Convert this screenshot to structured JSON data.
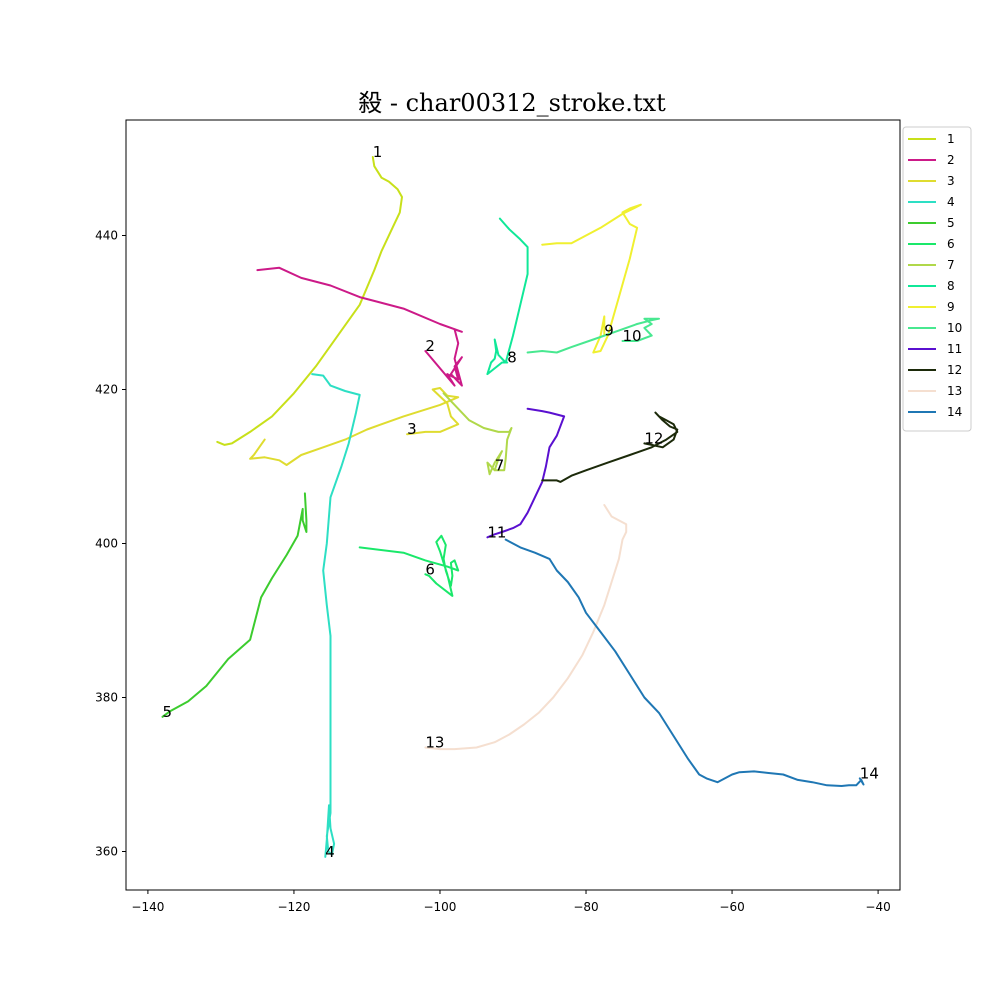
{
  "chart_data": {
    "type": "line",
    "title": "殺 - char00312_stroke.txt",
    "xlabel": "",
    "ylabel": "",
    "xlim": [
      -143,
      -37
    ],
    "ylim": [
      355,
      455
    ],
    "xticks": [
      -140,
      -120,
      -100,
      -80,
      -60,
      -40
    ],
    "yticks": [
      360,
      380,
      400,
      420,
      440
    ],
    "grid": false,
    "legend": "outside-right",
    "series": [
      {
        "name": "1",
        "color": "#c8e01a",
        "points": [
          [
            -130.5,
            413.2
          ],
          [
            -129.5,
            412.8
          ],
          [
            -128.5,
            413.0
          ],
          [
            -126,
            414.5
          ],
          [
            -123,
            416.5
          ],
          [
            -120,
            419.5
          ],
          [
            -117,
            423
          ],
          [
            -114,
            427
          ],
          [
            -111,
            431
          ],
          [
            -109,
            435.5
          ],
          [
            -108,
            438
          ],
          [
            -106.5,
            441
          ],
          [
            -105.5,
            443
          ],
          [
            -105.2,
            445
          ],
          [
            -105.8,
            446
          ],
          [
            -107,
            447
          ],
          [
            -108,
            447.5
          ],
          [
            -109,
            449
          ],
          [
            -109.2,
            450.2
          ]
        ]
      },
      {
        "name": "2",
        "color": "#cc1a88",
        "points": [
          [
            -125,
            435.5
          ],
          [
            -122,
            435.8
          ],
          [
            -119,
            434.5
          ],
          [
            -115,
            433.5
          ],
          [
            -111,
            432
          ],
          [
            -105,
            430.5
          ],
          [
            -100,
            428.5
          ],
          [
            -97,
            427.5
          ],
          [
            -98,
            427.8
          ],
          [
            -97.5,
            426
          ],
          [
            -98,
            424
          ],
          [
            -97,
            420.5
          ],
          [
            -98.5,
            422
          ],
          [
            -97,
            424.2
          ],
          [
            -98,
            423
          ],
          [
            -97.5,
            421.3
          ],
          [
            -99,
            422
          ],
          [
            -98,
            420.5
          ],
          [
            -102,
            425
          ]
        ]
      },
      {
        "name": "3",
        "color": "#dfdc30",
        "points": [
          [
            -124,
            413.5
          ],
          [
            -125.5,
            411.5
          ],
          [
            -126,
            411
          ],
          [
            -124,
            411.2
          ],
          [
            -122,
            410.8
          ],
          [
            -121,
            410.2
          ],
          [
            -119,
            411.5
          ],
          [
            -116,
            412.5
          ],
          [
            -113,
            413.5
          ],
          [
            -110,
            414.8
          ],
          [
            -105,
            416.5
          ],
          [
            -100,
            418
          ],
          [
            -97.5,
            419
          ],
          [
            -99,
            419.2
          ],
          [
            -100,
            420.2
          ],
          [
            -101,
            420.0
          ],
          [
            -99,
            418.2
          ],
          [
            -98.5,
            416.5
          ],
          [
            -97.5,
            415.5
          ],
          [
            -100,
            414.5
          ],
          [
            -102,
            414.5
          ],
          [
            -104.5,
            414.2
          ]
        ]
      },
      {
        "name": "4",
        "color": "#2ddfc4",
        "points": [
          [
            -117.5,
            422
          ],
          [
            -116,
            421.8
          ],
          [
            -115,
            420.5
          ],
          [
            -113,
            419.8
          ],
          [
            -111,
            419.3
          ],
          [
            -111.5,
            417
          ],
          [
            -112.5,
            413
          ],
          [
            -113.5,
            410
          ],
          [
            -115,
            406
          ],
          [
            -115.5,
            400
          ],
          [
            -116,
            396.5
          ],
          [
            -115.5,
            392
          ],
          [
            -115,
            388
          ],
          [
            -115,
            384
          ],
          [
            -115,
            380
          ],
          [
            -115,
            372
          ],
          [
            -115,
            365
          ],
          [
            -115.5,
            362
          ],
          [
            -115.3,
            360
          ],
          [
            -114.8,
            359.6
          ],
          [
            -114.5,
            361
          ],
          [
            -115,
            363
          ],
          [
            -115.2,
            366
          ],
          [
            -115.5,
            361.5
          ],
          [
            -115.7,
            359.3
          ]
        ]
      },
      {
        "name": "5",
        "color": "#3ccc2e",
        "points": [
          [
            -118.5,
            406.5
          ],
          [
            -118.3,
            403
          ],
          [
            -118.3,
            401.5
          ],
          [
            -118.8,
            403
          ],
          [
            -118.8,
            404.5
          ],
          [
            -119.5,
            401
          ],
          [
            -121,
            398.5
          ],
          [
            -123,
            395.5
          ],
          [
            -124.5,
            393
          ],
          [
            -126,
            387.5
          ],
          [
            -129,
            385
          ],
          [
            -132,
            381.5
          ],
          [
            -134.5,
            379.5
          ],
          [
            -137,
            378.2
          ],
          [
            -138,
            377.5
          ]
        ]
      },
      {
        "name": "6",
        "color": "#1ae86a",
        "points": [
          [
            -111,
            399.5
          ],
          [
            -105,
            398.8
          ],
          [
            -102,
            397.8
          ],
          [
            -99,
            397
          ],
          [
            -97.5,
            396.5
          ],
          [
            -98,
            397.8
          ],
          [
            -98.5,
            397.5
          ],
          [
            -98.3,
            395.8
          ],
          [
            -98.5,
            394.5
          ],
          [
            -99.2,
            396.5
          ],
          [
            -99.5,
            398
          ],
          [
            -99.2,
            399.8
          ],
          [
            -99.8,
            401
          ],
          [
            -100.5,
            400.2
          ],
          [
            -100,
            399
          ],
          [
            -99.5,
            397.5
          ],
          [
            -99,
            396
          ],
          [
            -98.3,
            393.2
          ],
          [
            -100.5,
            394.8
          ],
          [
            -101.5,
            395.8
          ],
          [
            -102,
            396
          ]
        ]
      },
      {
        "name": "7",
        "color": "#b0d84a",
        "points": [
          [
            -99.5,
            419.5
          ],
          [
            -98,
            418
          ],
          [
            -96,
            416
          ],
          [
            -94,
            415
          ],
          [
            -92,
            414.5
          ],
          [
            -90.5,
            414.5
          ],
          [
            -90.2,
            415
          ],
          [
            -90.8,
            413.5
          ],
          [
            -91,
            411
          ],
          [
            -91.2,
            409.5
          ],
          [
            -92.5,
            409.5
          ],
          [
            -92,
            411
          ],
          [
            -91.5,
            412
          ],
          [
            -92.5,
            410.5
          ],
          [
            -93.2,
            409
          ],
          [
            -93.5,
            410.5
          ],
          [
            -92.5,
            409.5
          ]
        ]
      },
      {
        "name": "8",
        "color": "#10e898",
        "points": [
          [
            -91.8,
            442.2
          ],
          [
            -90.5,
            440.8
          ],
          [
            -89,
            439.5
          ],
          [
            -88,
            438.5
          ],
          [
            -88,
            435
          ],
          [
            -89,
            431
          ],
          [
            -90,
            427
          ],
          [
            -91,
            423.5
          ],
          [
            -92,
            424.5
          ],
          [
            -92.5,
            426.5
          ],
          [
            -92.3,
            425
          ],
          [
            -92.5,
            424
          ],
          [
            -93,
            423.5
          ],
          [
            -93.5,
            422
          ],
          [
            -91.5,
            423.5
          ],
          [
            -90.8,
            423.5
          ]
        ]
      },
      {
        "name": "9",
        "color": "#f0f030",
        "points": [
          [
            -86,
            438.8
          ],
          [
            -84,
            439
          ],
          [
            -82,
            439
          ],
          [
            -80,
            440
          ],
          [
            -78,
            441
          ],
          [
            -75,
            442.8
          ],
          [
            -73.5,
            443.5
          ],
          [
            -72.5,
            444
          ],
          [
            -74,
            443.5
          ],
          [
            -75,
            443
          ],
          [
            -74,
            441.5
          ],
          [
            -73,
            441
          ],
          [
            -74,
            437
          ],
          [
            -75.5,
            432
          ],
          [
            -77,
            427
          ],
          [
            -78,
            425
          ],
          [
            -79,
            424.8
          ],
          [
            -78,
            427
          ],
          [
            -77.5,
            429.5
          ],
          [
            -77.5,
            427
          ]
        ]
      },
      {
        "name": "10",
        "color": "#48e890",
        "points": [
          [
            -88,
            424.8
          ],
          [
            -86,
            425
          ],
          [
            -84,
            424.8
          ],
          [
            -82,
            425.5
          ],
          [
            -79,
            426.5
          ],
          [
            -76,
            427.5
          ],
          [
            -73,
            428.5
          ],
          [
            -71,
            429
          ],
          [
            -70,
            429.2
          ],
          [
            -72,
            429.2
          ],
          [
            -71,
            428.5
          ],
          [
            -72,
            428
          ],
          [
            -71.5,
            427.5
          ],
          [
            -71,
            427
          ],
          [
            -73,
            426.3
          ],
          [
            -75,
            426.3
          ]
        ]
      },
      {
        "name": "11",
        "color": "#5a10d0",
        "points": [
          [
            -88,
            417.5
          ],
          [
            -86,
            417.2
          ],
          [
            -85,
            417
          ],
          [
            -83,
            416.5
          ],
          [
            -84,
            414
          ],
          [
            -85,
            412.5
          ],
          [
            -85.5,
            410
          ],
          [
            -86,
            408
          ],
          [
            -87,
            406
          ],
          [
            -88,
            404
          ],
          [
            -89,
            402.5
          ],
          [
            -90,
            402
          ],
          [
            -91.5,
            401.5
          ],
          [
            -92.5,
            401.2
          ],
          [
            -93,
            401
          ],
          [
            -93.5,
            400.8
          ]
        ]
      },
      {
        "name": "12",
        "color": "#1c2a0a",
        "points": [
          [
            -86,
            408.2
          ],
          [
            -84,
            408.2
          ],
          [
            -83.5,
            408
          ],
          [
            -82,
            408.8
          ],
          [
            -80,
            409.5
          ],
          [
            -77,
            410.5
          ],
          [
            -74,
            411.5
          ],
          [
            -71,
            412.5
          ],
          [
            -69,
            413.5
          ],
          [
            -67.5,
            414.5
          ],
          [
            -68,
            415.5
          ],
          [
            -69,
            416
          ],
          [
            -70,
            416.5
          ],
          [
            -70.5,
            417
          ],
          [
            -69.5,
            416
          ],
          [
            -68.5,
            415.2
          ],
          [
            -67.5,
            414.8
          ],
          [
            -68,
            413.5
          ],
          [
            -69.5,
            412.5
          ],
          [
            -71,
            412.8
          ],
          [
            -72,
            413
          ]
        ]
      },
      {
        "name": "13",
        "color": "#f5dfd0",
        "points": [
          [
            -77.5,
            405
          ],
          [
            -76.5,
            403.5
          ],
          [
            -75.5,
            403
          ],
          [
            -74.5,
            402.5
          ],
          [
            -74.5,
            401.5
          ],
          [
            -75,
            400.5
          ],
          [
            -75.5,
            398
          ],
          [
            -76.5,
            395
          ],
          [
            -77.5,
            392
          ],
          [
            -79,
            388.5
          ],
          [
            -80.5,
            385.5
          ],
          [
            -82.5,
            382.5
          ],
          [
            -84.5,
            380
          ],
          [
            -86.5,
            378
          ],
          [
            -88.5,
            376.5
          ],
          [
            -90.5,
            375.2
          ],
          [
            -92.5,
            374.2
          ],
          [
            -95,
            373.5
          ],
          [
            -98,
            373.3
          ],
          [
            -100,
            373.3
          ],
          [
            -102,
            373.5
          ]
        ]
      },
      {
        "name": "14",
        "color": "#1f77b4",
        "points": [
          [
            -91,
            400.5
          ],
          [
            -89,
            399.5
          ],
          [
            -87,
            398.8
          ],
          [
            -85,
            398
          ],
          [
            -84,
            396.5
          ],
          [
            -82.5,
            395
          ],
          [
            -81,
            393
          ],
          [
            -80,
            391
          ],
          [
            -78,
            388.5
          ],
          [
            -76,
            386
          ],
          [
            -74,
            383
          ],
          [
            -72,
            380
          ],
          [
            -70,
            378
          ],
          [
            -68,
            375
          ],
          [
            -66,
            372
          ],
          [
            -64.5,
            370
          ],
          [
            -63.5,
            369.5
          ],
          [
            -62,
            369
          ],
          [
            -61,
            369.5
          ],
          [
            -60,
            370
          ],
          [
            -59,
            370.3
          ],
          [
            -57,
            370.4
          ],
          [
            -55,
            370.2
          ],
          [
            -53,
            370
          ],
          [
            -51,
            369.3
          ],
          [
            -49,
            369
          ],
          [
            -47,
            368.6
          ],
          [
            -45,
            368.5
          ],
          [
            -44,
            368.6
          ],
          [
            -43,
            368.6
          ],
          [
            -42.3,
            369.3
          ],
          [
            -42,
            368.7
          ],
          [
            -42.5,
            369.5
          ]
        ]
      }
    ]
  }
}
